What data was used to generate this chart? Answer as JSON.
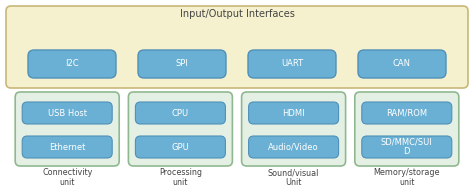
{
  "title": "Input/Output Interfaces",
  "io_box_bg": "#f5f0ce",
  "io_box_border": "#c8b878",
  "io_buttons": [
    "I2C",
    "SPI",
    "UART",
    "CAN"
  ],
  "io_button_bg": "#6ab0d4",
  "io_button_border": "#5090b8",
  "unit_box_bg": "#e4f0e4",
  "unit_box_border": "#90b890",
  "inner_button_bg": "#6ab0d4",
  "inner_button_border": "#5090b8",
  "units": [
    {
      "label": "Connectivity\nunit",
      "items": [
        "USB Host",
        "Ethernet"
      ]
    },
    {
      "label": "Processing\nunit",
      "items": [
        "CPU",
        "GPU"
      ]
    },
    {
      "label": "Sound/visual\nUnit",
      "items": [
        "HDMI",
        "Audio/Video"
      ]
    },
    {
      "label": "Memory/storage\nunit",
      "items": [
        "RAM/ROM",
        "SD/MMC/SUI\nD"
      ]
    }
  ],
  "text_color": "#444444",
  "button_text_color": "#ffffff",
  "bg_color": "#ffffff",
  "title_fontsize": 7.0,
  "button_fontsize": 6.0,
  "label_fontsize": 5.8
}
